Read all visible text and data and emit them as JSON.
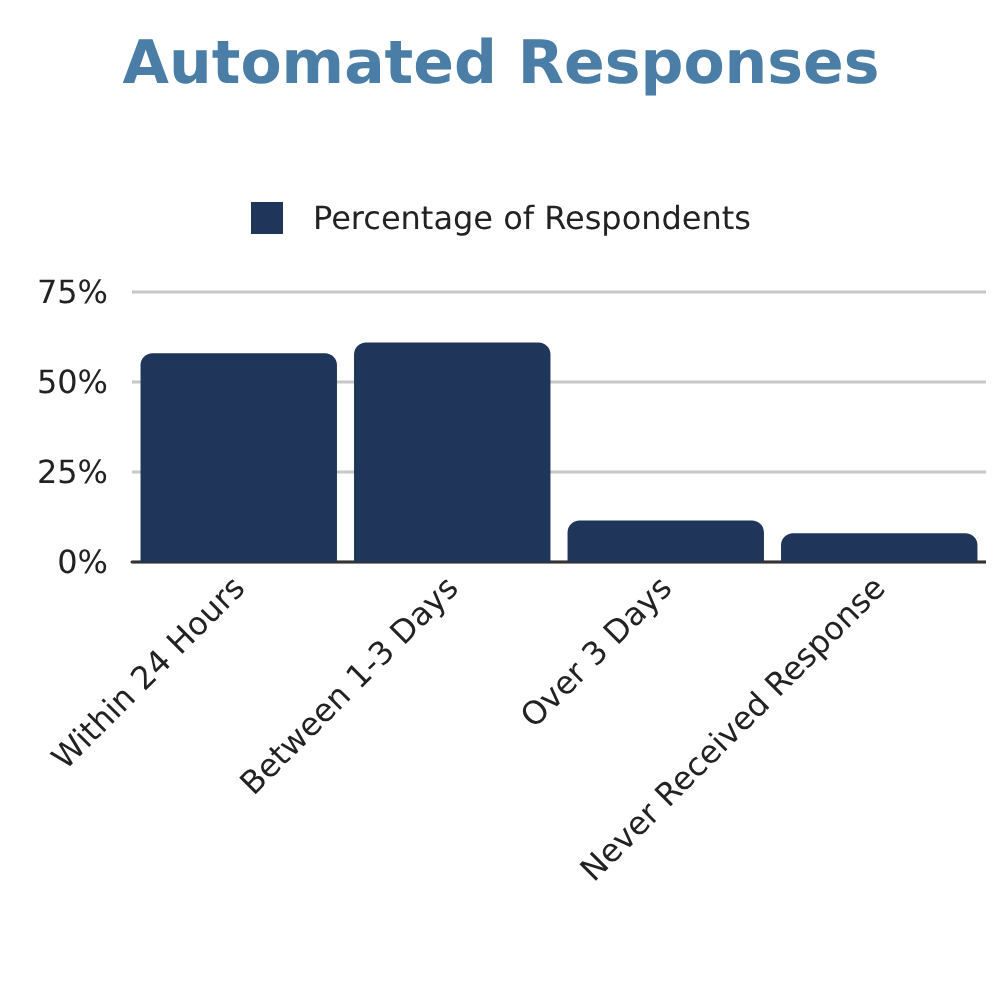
{
  "chart_data": {
    "type": "bar",
    "title": "Automated Responses",
    "categories": [
      "Within 24 Hours",
      "Between 1-3 Days",
      "Over 3 Days",
      "Never Received Response"
    ],
    "series": [
      {
        "name": "Percentage of Respondents",
        "color": "#1f3559",
        "values": [
          58,
          61,
          11.5,
          8
        ]
      }
    ],
    "ylim": [
      0,
      75
    ],
    "yticks": [
      {
        "value": 0,
        "label": "0%"
      },
      {
        "value": 25,
        "label": "25%"
      },
      {
        "value": 50,
        "label": "50%"
      },
      {
        "value": 75,
        "label": "75%"
      }
    ],
    "grid": "y",
    "legend": "top"
  }
}
